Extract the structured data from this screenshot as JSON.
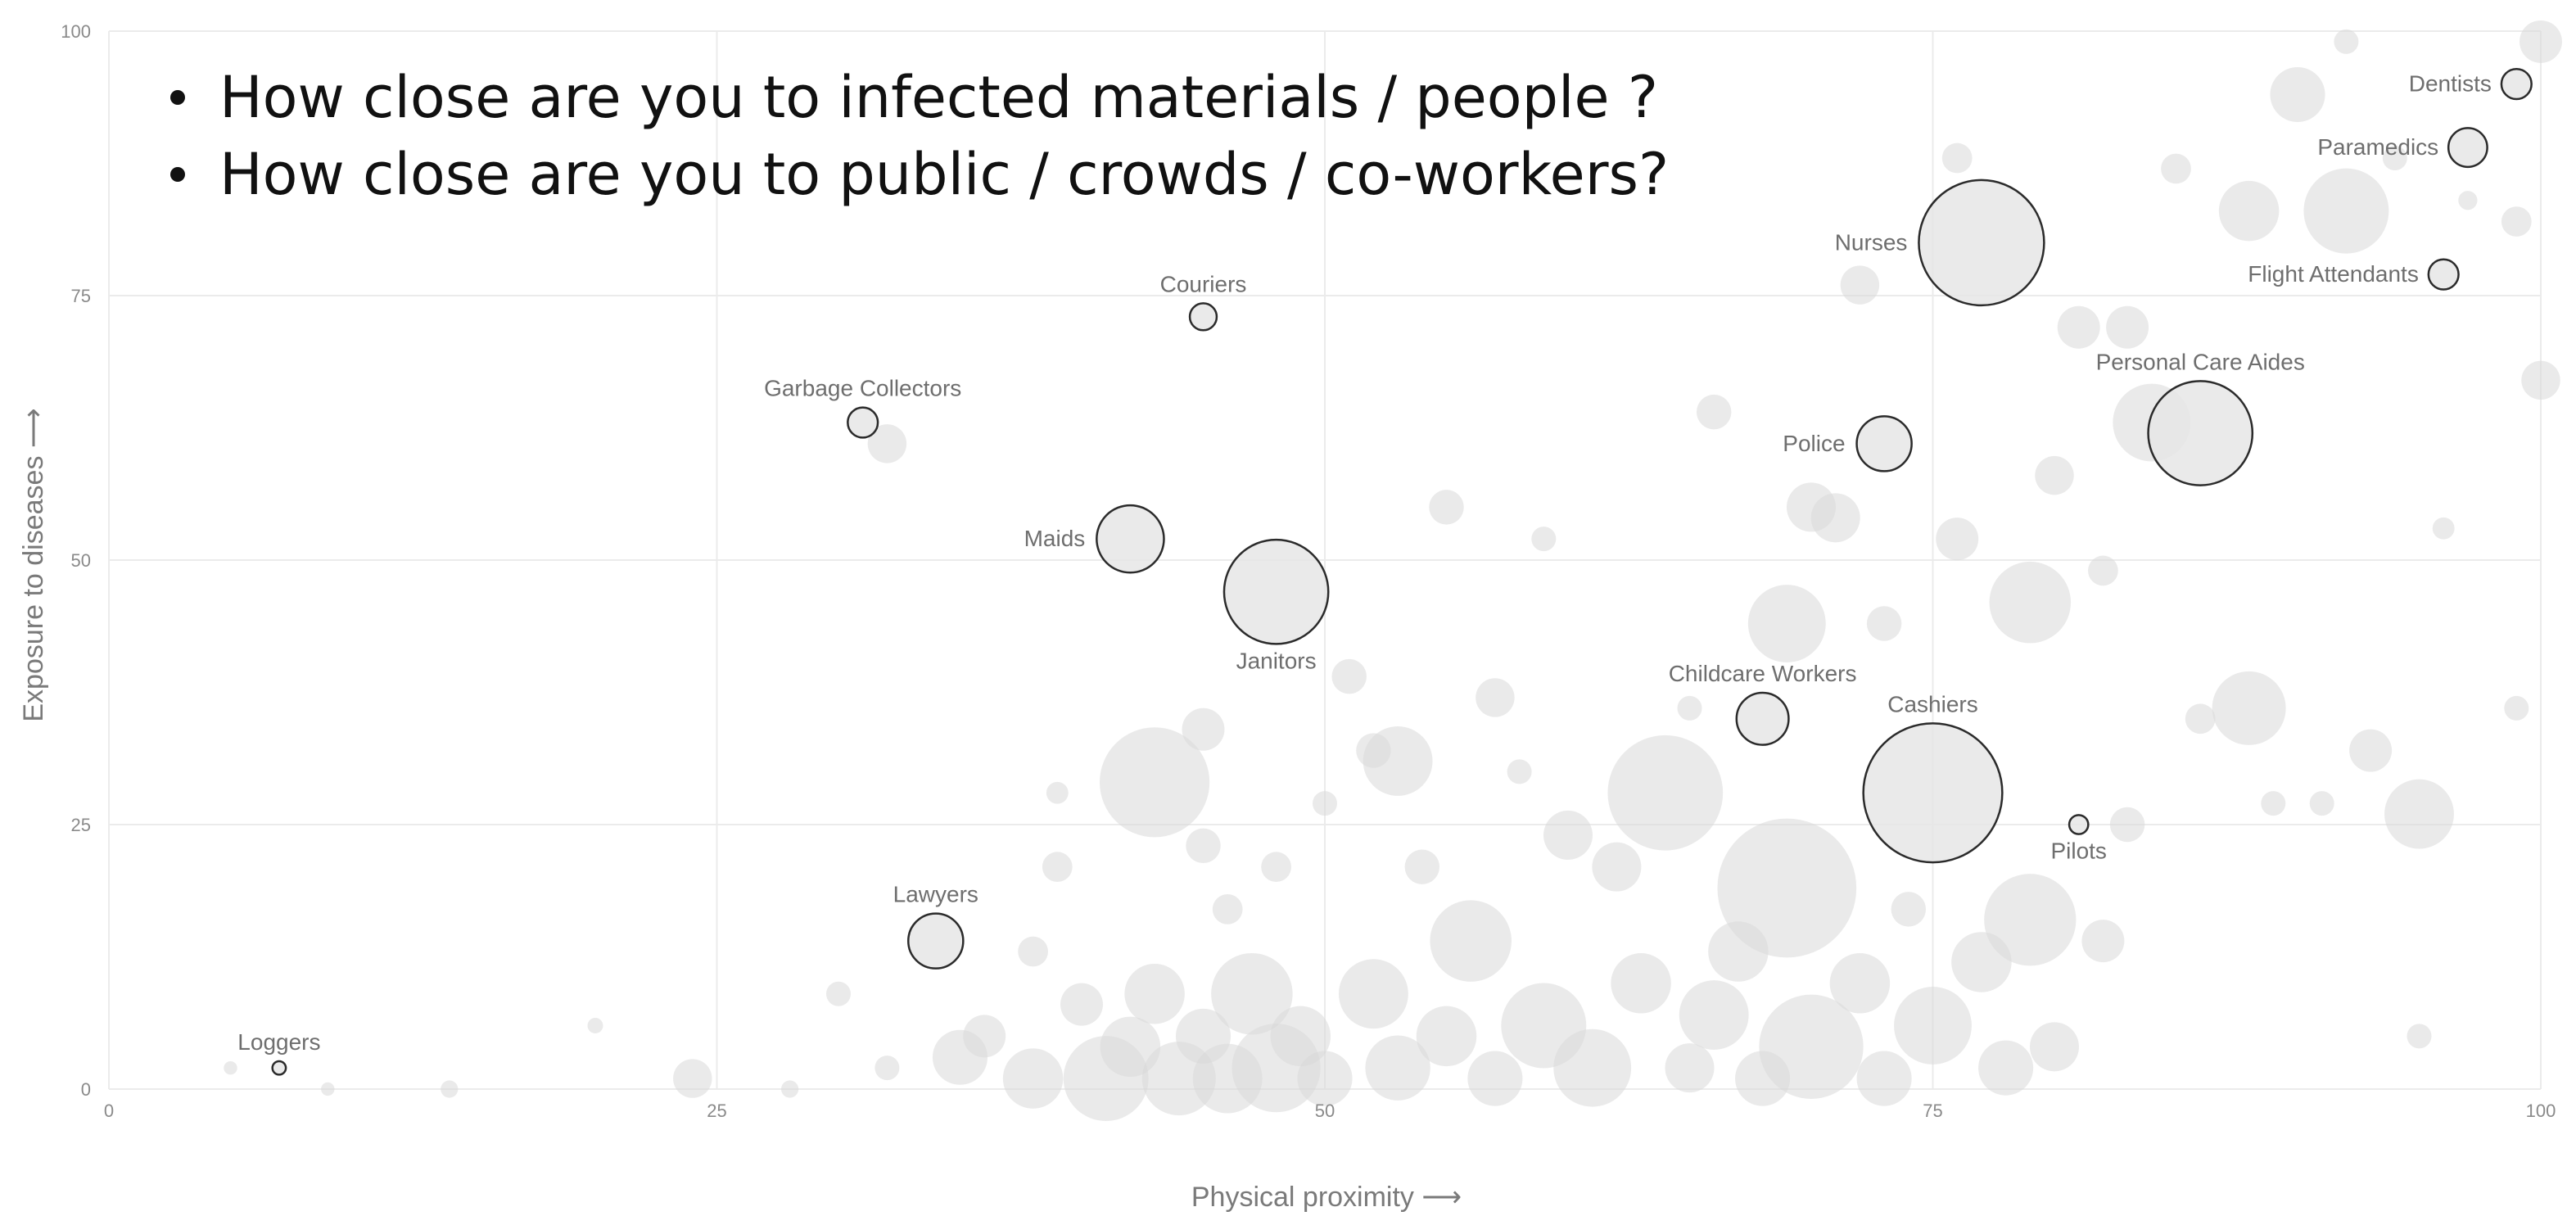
{
  "bullets": [
    "How close are you to infected materials / people ?",
    "How close are you to public / crowds / co-workers?"
  ],
  "chart_data": {
    "type": "scatter",
    "title": "",
    "xlabel": "Physical proximity ⟶",
    "ylabel": "Exposure to diseases ⟶",
    "xlim": [
      0,
      100
    ],
    "ylim": [
      0,
      100
    ],
    "xticks": [
      0,
      25,
      50,
      75,
      100
    ],
    "yticks": [
      0,
      25,
      50,
      75,
      100
    ],
    "xtick_labels": [
      "0",
      "25",
      "50",
      "75",
      "100"
    ],
    "ytick_labels": [
      "0",
      "25",
      "50",
      "75",
      "100"
    ],
    "grid": true,
    "colors": {
      "highlight_fill": "#e6e6e6",
      "highlight_stroke": "#2b2b2b",
      "background_fill": "#d9d9d9",
      "grid": "#ebebeb"
    },
    "highlighted": [
      {
        "name": "Dentists",
        "x": 99,
        "y": 95,
        "size": 1.5
      },
      {
        "name": "Paramedics",
        "x": 97,
        "y": 89,
        "size": 2.5
      },
      {
        "name": "Flight Attendants",
        "x": 96,
        "y": 77,
        "size": 1.5
      },
      {
        "name": "Nurses",
        "x": 77,
        "y": 80,
        "size": 26
      },
      {
        "name": "Personal Care Aides",
        "x": 86,
        "y": 62,
        "size": 18
      },
      {
        "name": "Couriers",
        "x": 45,
        "y": 73,
        "size": 1.2
      },
      {
        "name": "Garbage Collectors",
        "x": 31,
        "y": 63,
        "size": 1.5
      },
      {
        "name": "Police",
        "x": 73,
        "y": 61,
        "size": 5
      },
      {
        "name": "Maids",
        "x": 42,
        "y": 52,
        "size": 7.5
      },
      {
        "name": "Janitors",
        "x": 48,
        "y": 47,
        "size": 18
      },
      {
        "name": "Childcare Workers",
        "x": 68,
        "y": 35,
        "size": 4.5
      },
      {
        "name": "Cashiers",
        "x": 75,
        "y": 28,
        "size": 32
      },
      {
        "name": "Pilots",
        "x": 81,
        "y": 25,
        "size": 0.6
      },
      {
        "name": "Lawyers",
        "x": 34,
        "y": 14,
        "size": 5
      },
      {
        "name": "Loggers",
        "x": 7,
        "y": 2,
        "size": 0.3
      }
    ],
    "background_points": [
      {
        "x": 5,
        "y": 2,
        "size": 0.3
      },
      {
        "x": 9,
        "y": 0,
        "size": 0.3
      },
      {
        "x": 14,
        "y": 0,
        "size": 0.5
      },
      {
        "x": 20,
        "y": 6,
        "size": 0.4
      },
      {
        "x": 24,
        "y": 1,
        "size": 2.5
      },
      {
        "x": 28,
        "y": 0,
        "size": 0.5
      },
      {
        "x": 30,
        "y": 9,
        "size": 1
      },
      {
        "x": 32,
        "y": 61,
        "size": 2.5
      },
      {
        "x": 32,
        "y": 2,
        "size": 1
      },
      {
        "x": 35,
        "y": 3,
        "size": 5
      },
      {
        "x": 36,
        "y": 5,
        "size": 3
      },
      {
        "x": 38,
        "y": 1,
        "size": 6
      },
      {
        "x": 38,
        "y": 13,
        "size": 1.5
      },
      {
        "x": 39,
        "y": 21,
        "size": 1.5
      },
      {
        "x": 39,
        "y": 28,
        "size": 0.8
      },
      {
        "x": 40,
        "y": 8,
        "size": 3
      },
      {
        "x": 41,
        "y": 1,
        "size": 12
      },
      {
        "x": 42,
        "y": 4,
        "size": 6
      },
      {
        "x": 43,
        "y": 29,
        "size": 20
      },
      {
        "x": 43,
        "y": 9,
        "size": 6
      },
      {
        "x": 44,
        "y": 1,
        "size": 9
      },
      {
        "x": 45,
        "y": 5,
        "size": 5
      },
      {
        "x": 45,
        "y": 23,
        "size": 2
      },
      {
        "x": 45,
        "y": 34,
        "size": 3
      },
      {
        "x": 46,
        "y": 1,
        "size": 8
      },
      {
        "x": 46,
        "y": 17,
        "size": 1.5
      },
      {
        "x": 47,
        "y": 9,
        "size": 11
      },
      {
        "x": 48,
        "y": 2,
        "size": 13
      },
      {
        "x": 48,
        "y": 21,
        "size": 1.5
      },
      {
        "x": 49,
        "y": 5,
        "size": 6
      },
      {
        "x": 50,
        "y": 27,
        "size": 1
      },
      {
        "x": 50,
        "y": 1,
        "size": 5
      },
      {
        "x": 51,
        "y": 39,
        "size": 2
      },
      {
        "x": 52,
        "y": 9,
        "size": 8
      },
      {
        "x": 52,
        "y": 32,
        "size": 2
      },
      {
        "x": 53,
        "y": 2,
        "size": 7
      },
      {
        "x": 53,
        "y": 31,
        "size": 8
      },
      {
        "x": 54,
        "y": 21,
        "size": 2
      },
      {
        "x": 55,
        "y": 55,
        "size": 2
      },
      {
        "x": 55,
        "y": 5,
        "size": 6
      },
      {
        "x": 56,
        "y": 14,
        "size": 11
      },
      {
        "x": 57,
        "y": 1,
        "size": 5
      },
      {
        "x": 57,
        "y": 37,
        "size": 2.5
      },
      {
        "x": 58,
        "y": 30,
        "size": 1
      },
      {
        "x": 59,
        "y": 6,
        "size": 12
      },
      {
        "x": 59,
        "y": 52,
        "size": 1
      },
      {
        "x": 60,
        "y": 24,
        "size": 4
      },
      {
        "x": 61,
        "y": 2,
        "size": 10
      },
      {
        "x": 62,
        "y": 21,
        "size": 4
      },
      {
        "x": 63,
        "y": 10,
        "size": 6
      },
      {
        "x": 64,
        "y": 28,
        "size": 22
      },
      {
        "x": 65,
        "y": 2,
        "size": 4
      },
      {
        "x": 65,
        "y": 36,
        "size": 1
      },
      {
        "x": 66,
        "y": 7,
        "size": 8
      },
      {
        "x": 66,
        "y": 64,
        "size": 2
      },
      {
        "x": 67,
        "y": 13,
        "size": 6
      },
      {
        "x": 68,
        "y": 1,
        "size": 5
      },
      {
        "x": 69,
        "y": 19,
        "size": 32
      },
      {
        "x": 69,
        "y": 44,
        "size": 10
      },
      {
        "x": 70,
        "y": 4,
        "size": 18
      },
      {
        "x": 70,
        "y": 55,
        "size": 4
      },
      {
        "x": 71,
        "y": 54,
        "size": 4
      },
      {
        "x": 72,
        "y": 10,
        "size": 6
      },
      {
        "x": 72,
        "y": 76,
        "size": 2.5
      },
      {
        "x": 73,
        "y": 1,
        "size": 5
      },
      {
        "x": 73,
        "y": 44,
        "size": 2
      },
      {
        "x": 74,
        "y": 17,
        "size": 2
      },
      {
        "x": 75,
        "y": 6,
        "size": 10
      },
      {
        "x": 76,
        "y": 52,
        "size": 3
      },
      {
        "x": 76,
        "y": 88,
        "size": 1.5
      },
      {
        "x": 77,
        "y": 12,
        "size": 6
      },
      {
        "x": 78,
        "y": 2,
        "size": 5
      },
      {
        "x": 79,
        "y": 46,
        "size": 11
      },
      {
        "x": 79,
        "y": 16,
        "size": 14
      },
      {
        "x": 80,
        "y": 4,
        "size": 4
      },
      {
        "x": 80,
        "y": 58,
        "size": 2.5
      },
      {
        "x": 81,
        "y": 72,
        "size": 3
      },
      {
        "x": 82,
        "y": 49,
        "size": 1.5
      },
      {
        "x": 82,
        "y": 14,
        "size": 3
      },
      {
        "x": 83,
        "y": 25,
        "size": 2
      },
      {
        "x": 83,
        "y": 72,
        "size": 3
      },
      {
        "x": 84,
        "y": 63,
        "size": 10
      },
      {
        "x": 85,
        "y": 87,
        "size": 1.5
      },
      {
        "x": 86,
        "y": 35,
        "size": 1.5
      },
      {
        "x": 88,
        "y": 36,
        "size": 9
      },
      {
        "x": 88,
        "y": 83,
        "size": 6
      },
      {
        "x": 89,
        "y": 27,
        "size": 1
      },
      {
        "x": 90,
        "y": 94,
        "size": 5
      },
      {
        "x": 91,
        "y": 27,
        "size": 1
      },
      {
        "x": 92,
        "y": 83,
        "size": 12
      },
      {
        "x": 92,
        "y": 99,
        "size": 1
      },
      {
        "x": 93,
        "y": 32,
        "size": 3
      },
      {
        "x": 94,
        "y": 88,
        "size": 1
      },
      {
        "x": 95,
        "y": 26,
        "size": 8
      },
      {
        "x": 95,
        "y": 5,
        "size": 1
      },
      {
        "x": 96,
        "y": 53,
        "size": 0.8
      },
      {
        "x": 97,
        "y": 84,
        "size": 0.6
      },
      {
        "x": 99,
        "y": 82,
        "size": 1.5
      },
      {
        "x": 99,
        "y": 36,
        "size": 1
      },
      {
        "x": 100,
        "y": 67,
        "size": 2.5
      },
      {
        "x": 100,
        "y": 99,
        "size": 3
      }
    ]
  }
}
